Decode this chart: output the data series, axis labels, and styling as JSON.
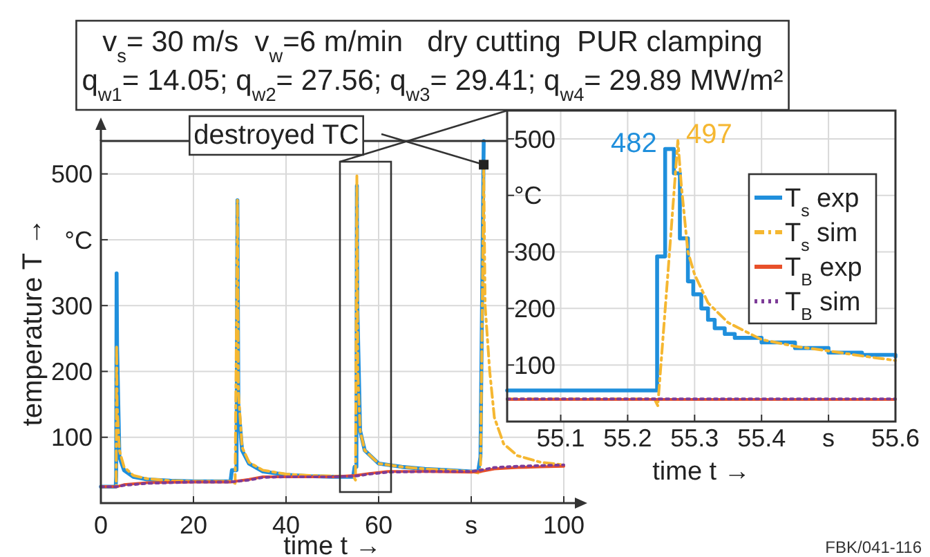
{
  "chart_data": [
    {
      "type": "line",
      "title": "v$_{s}$= 30 m/s  v$_{w}$=6 m/min   dry cutting  PUR clamping",
      "subtitle": "q$_{w1}$= 14.05; q$_{w2}$= 27.56; q$_{w3}$= 29.41; q$_{w4}$= 29.89 MW/m²",
      "xlabel": "time t →",
      "ylabel": "temperature T →",
      "xlim": [
        0,
        100
      ],
      "ylim": [
        0,
        550
      ],
      "xticks": [
        0,
        20,
        40,
        60,
        {
          "value": 80,
          "label": "s"
        },
        100
      ],
      "yticks": [
        100,
        200,
        300,
        {
          "value": 400,
          "label": "°C"
        },
        500
      ],
      "grid": true,
      "annotations": [
        {
          "text": "destroyed TC",
          "x": 82.7,
          "y": 514
        },
        "FBK/041-116"
      ],
      "series": [
        {
          "color": "#1f8fdc",
          "line_style": "solid",
          "x": [
            0,
            3.2,
            3.3,
            3.4,
            3.5,
            4,
            5,
            7,
            10,
            15,
            20,
            28,
            28.3,
            29.3,
            29.5,
            29.7,
            30.5,
            32,
            35,
            40,
            45,
            50,
            54.5,
            54.8,
            55.2,
            55.3,
            55.4,
            56,
            57,
            60,
            65,
            70,
            75,
            80,
            81.5,
            82,
            82.7
          ],
          "values": [
            25,
            25,
            40,
            349,
            240,
            70,
            50,
            40,
            36,
            34,
            33,
            33,
            50,
            50,
            460,
            150,
            80,
            60,
            48,
            43,
            41,
            40,
            40,
            55,
            55,
            482,
            300,
            110,
            80,
            60,
            55,
            52,
            50,
            48,
            48,
            70,
            550
          ]
        },
        {
          "color": "#f5b731",
          "line_style": "dashed",
          "x": [
            0,
            3.3,
            3.4,
            3.5,
            4,
            5,
            7,
            10,
            15,
            20,
            28,
            29,
            29.5,
            29.7,
            30.5,
            32,
            35,
            40,
            45,
            50,
            54.5,
            55,
            55.3,
            55.5,
            56,
            57,
            60,
            65,
            70,
            75,
            80,
            82,
            82.7,
            83,
            84,
            85,
            87,
            90,
            95,
            100
          ],
          "values": [
            25,
            25,
            240,
            150,
            80,
            55,
            42,
            37,
            34,
            33,
            33,
            30,
            460,
            170,
            85,
            62,
            50,
            44,
            42,
            41,
            41,
            35,
            497,
            200,
            110,
            80,
            60,
            55,
            52,
            50,
            48,
            45,
            510,
            300,
            200,
            130,
            90,
            72,
            62,
            58
          ]
        },
        {
          "color": "#e8502a",
          "line_style": "solid",
          "x": [
            0,
            3.5,
            5,
            10,
            20,
            28,
            32,
            35,
            40,
            50,
            55,
            58,
            62,
            70,
            80,
            82,
            85,
            90,
            95,
            100
          ],
          "values": [
            25,
            25,
            28,
            31,
            32,
            32,
            36,
            40,
            40,
            40,
            42,
            45,
            48,
            48,
            47,
            48,
            52,
            54,
            55,
            56
          ]
        },
        {
          "color": "#7d3c98",
          "line_style": "dotted",
          "x": [
            0,
            3.5,
            5,
            10,
            20,
            28,
            32,
            35,
            40,
            50,
            55,
            58,
            62,
            70,
            80,
            82,
            85,
            90,
            95,
            100
          ],
          "values": [
            25,
            25,
            27,
            30,
            32,
            32,
            35,
            39,
            40,
            40,
            41,
            44,
            47,
            48,
            48,
            50,
            54,
            56,
            57,
            58
          ]
        }
      ]
    },
    {
      "type": "line",
      "xlabel": "time t →",
      "xlim": [
        55.02,
        55.6
      ],
      "ylim": [
        0,
        550
      ],
      "xticks": [
        55.1,
        55.2,
        55.3,
        55.4,
        {
          "value": 55.5,
          "label": "s"
        },
        55.6
      ],
      "yticks": [
        100,
        200,
        300,
        {
          "value": 400,
          "label": "°C"
        },
        500
      ],
      "grid": true,
      "legend": "top right",
      "annotations": [
        {
          "text": "482",
          "x": 55.256,
          "y": 482
        },
        {
          "text": "497",
          "x": 55.275,
          "y": 497
        }
      ],
      "series": [
        {
          "name": "T$_{s}$ exp",
          "type": "step",
          "color": "#1f8fdc",
          "line_style": "solid",
          "x": [
            55.02,
            55.244,
            55.256,
            55.269,
            55.278,
            55.29,
            55.298,
            55.31,
            55.32,
            55.33,
            55.345,
            55.36,
            55.4,
            55.45,
            55.5,
            55.55,
            55.6
          ],
          "values": [
            55,
            292,
            482,
            439,
            324,
            248,
            225,
            200,
            180,
            165,
            155,
            148,
            140,
            130,
            122,
            118,
            115
          ]
        },
        {
          "name": "T$_{s}$ sim",
          "color": "#f5b731",
          "line_style": "dashed",
          "x": [
            55.02,
            55.24,
            55.245,
            55.26,
            55.275,
            55.28,
            55.29,
            55.3,
            55.32,
            55.35,
            55.4,
            55.45,
            55.5,
            55.55,
            55.6
          ],
          "values": [
            40,
            40,
            28,
            260,
            497,
            420,
            300,
            260,
            210,
            175,
            145,
            133,
            125,
            116,
            108
          ]
        },
        {
          "name": "T$_{B}$ exp",
          "color": "#e8502a",
          "line_style": "solid",
          "x": [
            55.02,
            55.6
          ],
          "values": [
            39,
            39
          ]
        },
        {
          "name": "T$_{B}$ sim",
          "color": "#7d3c98",
          "line_style": "dotted",
          "x": [
            55.02,
            55.6
          ],
          "values": [
            40,
            40
          ]
        }
      ]
    }
  ]
}
